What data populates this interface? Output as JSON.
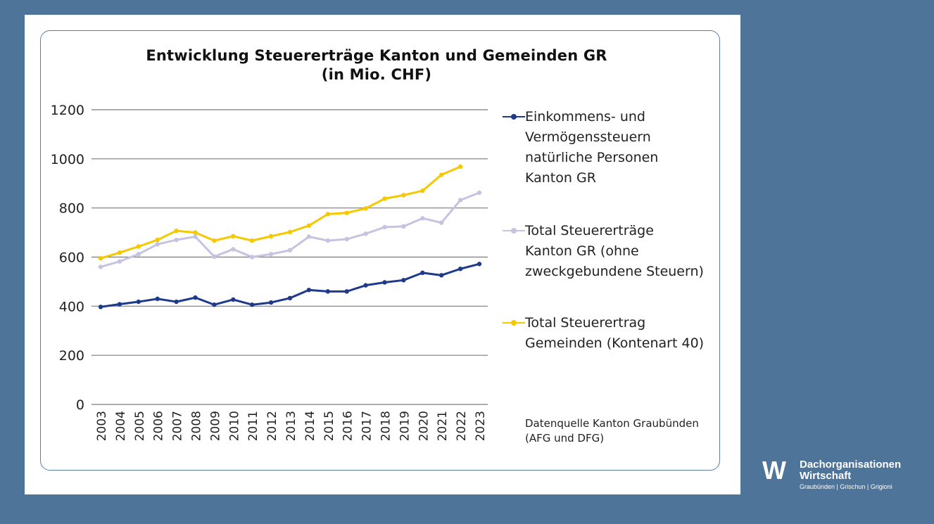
{
  "chart_data": {
    "type": "line",
    "title_line1": "Entwicklung Steuererträge Kanton und Gemeinden GR",
    "title_line2": "(in Mio. CHF)",
    "categories": [
      "2003",
      "2004",
      "2005",
      "2006",
      "2007",
      "2008",
      "2009",
      "2010",
      "2011",
      "2012",
      "2013",
      "2014",
      "2015",
      "2016",
      "2017",
      "2018",
      "2019",
      "2020",
      "2021",
      "2022",
      "2023"
    ],
    "y_ticks": [
      0,
      200,
      400,
      600,
      800,
      1000,
      1200
    ],
    "ylim": [
      0,
      1200
    ],
    "grid": true,
    "legend_position": "right",
    "series": [
      {
        "name": "Einkommens- und Vermögenssteuern natürliche Personen Kanton GR",
        "legend_lines": [
          "Einkommens- und",
          "Vermögenssteuern",
          "natürliche Personen",
          "Kanton GR"
        ],
        "color": "#1f3a8a",
        "values": [
          397,
          408,
          418,
          430,
          418,
          435,
          406,
          427,
          406,
          415,
          433,
          466,
          460,
          460,
          485,
          497,
          506,
          536,
          526,
          552,
          572
        ]
      },
      {
        "name": "Total Steuererträge Kanton GR (ohne zweckgebundene Steuern)",
        "legend_lines": [
          "Total Steuererträge",
          "Kanton GR (ohne",
          "zweckgebundene Steuern)"
        ],
        "color": "#c5c4e0",
        "values": [
          560,
          582,
          612,
          652,
          670,
          683,
          602,
          632,
          600,
          612,
          628,
          683,
          667,
          673,
          695,
          722,
          725,
          758,
          740,
          832,
          862
        ]
      },
      {
        "name": "Total Steuerertrag Gemeinden (Kontenart 40)",
        "legend_lines": [
          "Total Steuerertrag",
          "Gemeinden (Kontenart 40)"
        ],
        "color": "#f5c800",
        "values": [
          595,
          618,
          643,
          670,
          707,
          700,
          667,
          685,
          667,
          685,
          702,
          728,
          775,
          780,
          798,
          838,
          852,
          870,
          935,
          968,
          null
        ]
      }
    ],
    "source_lines": [
      "Datenquelle Kanton Graubünden",
      "(AFG und DFG)"
    ]
  },
  "logo": {
    "mark": "W",
    "line1": "Dachorganisationen",
    "line2": "Wirtschaft",
    "line3": "Graubünden | Grischun | Grigioni"
  }
}
